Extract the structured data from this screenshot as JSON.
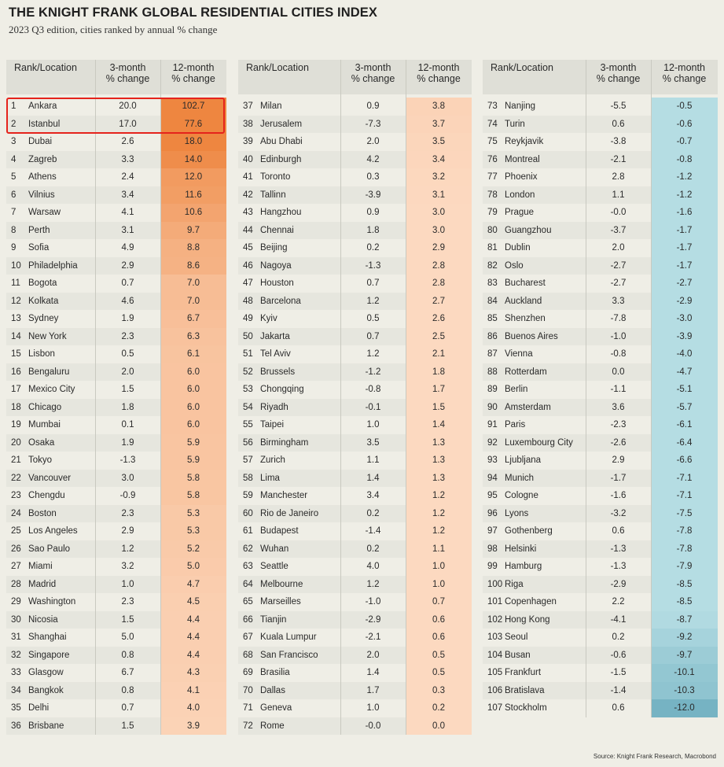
{
  "title": "THE KNIGHT FRANK GLOBAL RESIDENTIAL CITIES INDEX",
  "subtitle": "2023 Q3 edition, cities ranked by annual % change",
  "source": "Source: Knight Frank Research, Macrobond",
  "colors": {
    "background": "#efeee6",
    "header": "#dfdfd7",
    "positive_dark": "#ee8640",
    "positive_light": "#fcd9c0",
    "negative_light": "#b5dde3",
    "negative_dark": "#76b3c3",
    "highlight_border": "#e5231c"
  },
  "chart_data": {
    "type": "table",
    "columns": [
      "Rank/Location",
      "3-month % change",
      "12-month % change"
    ],
    "highlighted_ranks": [
      1,
      2
    ],
    "rows": [
      {
        "rank": "1",
        "city": "Ankara",
        "m3": "20.0",
        "m12": "102.7"
      },
      {
        "rank": "2",
        "city": "Istanbul",
        "m3": "17.0",
        "m12": "77.6"
      },
      {
        "rank": "3",
        "city": "Dubai",
        "m3": "2.6",
        "m12": "18.0"
      },
      {
        "rank": "4",
        "city": "Zagreb",
        "m3": "3.3",
        "m12": "14.0"
      },
      {
        "rank": "5",
        "city": "Athens",
        "m3": "2.4",
        "m12": "12.0"
      },
      {
        "rank": "6",
        "city": "Vilnius",
        "m3": "3.4",
        "m12": "11.6"
      },
      {
        "rank": "7",
        "city": "Warsaw",
        "m3": "4.1",
        "m12": "10.6"
      },
      {
        "rank": "8",
        "city": "Perth",
        "m3": "3.1",
        "m12": "9.7"
      },
      {
        "rank": "9",
        "city": "Sofia",
        "m3": "4.9",
        "m12": "8.8"
      },
      {
        "rank": "10",
        "city": "Philadelphia",
        "m3": "2.9",
        "m12": "8.6"
      },
      {
        "rank": "11",
        "city": "Bogota",
        "m3": "0.7",
        "m12": "7.0"
      },
      {
        "rank": "12",
        "city": "Kolkata",
        "m3": "4.6",
        "m12": "7.0"
      },
      {
        "rank": "13",
        "city": "Sydney",
        "m3": "1.9",
        "m12": "6.7"
      },
      {
        "rank": "14",
        "city": "New York",
        "m3": "2.3",
        "m12": "6.3"
      },
      {
        "rank": "15",
        "city": "Lisbon",
        "m3": "0.5",
        "m12": "6.1"
      },
      {
        "rank": "16",
        "city": "Bengaluru",
        "m3": "2.0",
        "m12": "6.0"
      },
      {
        "rank": "17",
        "city": "Mexico City",
        "m3": "1.5",
        "m12": "6.0"
      },
      {
        "rank": "18",
        "city": "Chicago",
        "m3": "1.8",
        "m12": "6.0"
      },
      {
        "rank": "19",
        "city": "Mumbai",
        "m3": "0.1",
        "m12": "6.0"
      },
      {
        "rank": "20",
        "city": "Osaka",
        "m3": "1.9",
        "m12": "5.9"
      },
      {
        "rank": "21",
        "city": "Tokyo",
        "m3": "-1.3",
        "m12": "5.9"
      },
      {
        "rank": "22",
        "city": "Vancouver",
        "m3": "3.0",
        "m12": "5.8"
      },
      {
        "rank": "23",
        "city": "Chengdu",
        "m3": "-0.9",
        "m12": "5.8"
      },
      {
        "rank": "24",
        "city": "Boston",
        "m3": "2.3",
        "m12": "5.3"
      },
      {
        "rank": "25",
        "city": "Los Angeles",
        "m3": "2.9",
        "m12": "5.3"
      },
      {
        "rank": "26",
        "city": "Sao Paulo",
        "m3": "1.2",
        "m12": "5.2"
      },
      {
        "rank": "27",
        "city": "Miami",
        "m3": "3.2",
        "m12": "5.0"
      },
      {
        "rank": "28",
        "city": "Madrid",
        "m3": "1.0",
        "m12": "4.7"
      },
      {
        "rank": "29",
        "city": "Washington",
        "m3": "2.3",
        "m12": "4.5"
      },
      {
        "rank": "30",
        "city": "Nicosia",
        "m3": "1.5",
        "m12": "4.4"
      },
      {
        "rank": "31",
        "city": "Shanghai",
        "m3": "5.0",
        "m12": "4.4"
      },
      {
        "rank": "32",
        "city": "Singapore",
        "m3": "0.8",
        "m12": "4.4"
      },
      {
        "rank": "33",
        "city": "Glasgow",
        "m3": "6.7",
        "m12": "4.3"
      },
      {
        "rank": "34",
        "city": "Bangkok",
        "m3": "0.8",
        "m12": "4.1"
      },
      {
        "rank": "35",
        "city": "Delhi",
        "m3": "0.7",
        "m12": "4.0"
      },
      {
        "rank": "36",
        "city": "Brisbane",
        "m3": "1.5",
        "m12": "3.9"
      },
      {
        "rank": "37",
        "city": "Milan",
        "m3": "0.9",
        "m12": "3.8"
      },
      {
        "rank": "38",
        "city": "Jerusalem",
        "m3": "-7.3",
        "m12": "3.7"
      },
      {
        "rank": "39",
        "city": "Abu Dhabi",
        "m3": "2.0",
        "m12": "3.5"
      },
      {
        "rank": "40",
        "city": "Edinburgh",
        "m3": "4.2",
        "m12": "3.4"
      },
      {
        "rank": "41",
        "city": "Toronto",
        "m3": "0.3",
        "m12": "3.2"
      },
      {
        "rank": "42",
        "city": "Tallinn",
        "m3": "-3.9",
        "m12": "3.1"
      },
      {
        "rank": "43",
        "city": "Hangzhou",
        "m3": "0.9",
        "m12": "3.0"
      },
      {
        "rank": "44",
        "city": "Chennai",
        "m3": "1.8",
        "m12": "3.0"
      },
      {
        "rank": "45",
        "city": "Beijing",
        "m3": "0.2",
        "m12": "2.9"
      },
      {
        "rank": "46",
        "city": "Nagoya",
        "m3": "-1.3",
        "m12": "2.8"
      },
      {
        "rank": "47",
        "city": "Houston",
        "m3": "0.7",
        "m12": "2.8"
      },
      {
        "rank": "48",
        "city": "Barcelona",
        "m3": "1.2",
        "m12": "2.7"
      },
      {
        "rank": "49",
        "city": "Kyiv",
        "m3": "0.5",
        "m12": "2.6"
      },
      {
        "rank": "50",
        "city": "Jakarta",
        "m3": "0.7",
        "m12": "2.5"
      },
      {
        "rank": "51",
        "city": "Tel Aviv",
        "m3": "1.2",
        "m12": "2.1"
      },
      {
        "rank": "52",
        "city": "Brussels",
        "m3": "-1.2",
        "m12": "1.8"
      },
      {
        "rank": "53",
        "city": "Chongqing",
        "m3": "-0.8",
        "m12": "1.7"
      },
      {
        "rank": "54",
        "city": "Riyadh",
        "m3": "-0.1",
        "m12": "1.5"
      },
      {
        "rank": "55",
        "city": "Taipei",
        "m3": "1.0",
        "m12": "1.4"
      },
      {
        "rank": "56",
        "city": "Birmingham",
        "m3": "3.5",
        "m12": "1.3"
      },
      {
        "rank": "57",
        "city": "Zurich",
        "m3": "1.1",
        "m12": "1.3"
      },
      {
        "rank": "58",
        "city": "Lima",
        "m3": "1.4",
        "m12": "1.3"
      },
      {
        "rank": "59",
        "city": "Manchester",
        "m3": "3.4",
        "m12": "1.2"
      },
      {
        "rank": "60",
        "city": "Rio de Janeiro",
        "m3": "0.2",
        "m12": "1.2"
      },
      {
        "rank": "61",
        "city": "Budapest",
        "m3": "-1.4",
        "m12": "1.2"
      },
      {
        "rank": "62",
        "city": "Wuhan",
        "m3": "0.2",
        "m12": "1.1"
      },
      {
        "rank": "63",
        "city": "Seattle",
        "m3": "4.0",
        "m12": "1.0"
      },
      {
        "rank": "64",
        "city": "Melbourne",
        "m3": "1.2",
        "m12": "1.0"
      },
      {
        "rank": "65",
        "city": "Marseilles",
        "m3": "-1.0",
        "m12": "0.7"
      },
      {
        "rank": "66",
        "city": "Tianjin",
        "m3": "-2.9",
        "m12": "0.6"
      },
      {
        "rank": "67",
        "city": "Kuala Lumpur",
        "m3": "-2.1",
        "m12": "0.6"
      },
      {
        "rank": "68",
        "city": "San Francisco",
        "m3": "2.0",
        "m12": "0.5"
      },
      {
        "rank": "69",
        "city": "Brasilia",
        "m3": "1.4",
        "m12": "0.5"
      },
      {
        "rank": "70",
        "city": "Dallas",
        "m3": "1.7",
        "m12": "0.3"
      },
      {
        "rank": "71",
        "city": "Geneva",
        "m3": "1.0",
        "m12": "0.2"
      },
      {
        "rank": "72",
        "city": "Rome",
        "m3": "-0.0",
        "m12": "0.0"
      },
      {
        "rank": "73",
        "city": "Nanjing",
        "m3": "-5.5",
        "m12": "-0.5"
      },
      {
        "rank": "74",
        "city": "Turin",
        "m3": "0.6",
        "m12": "-0.6"
      },
      {
        "rank": "75",
        "city": "Reykjavik",
        "m3": "-3.8",
        "m12": "-0.7"
      },
      {
        "rank": "76",
        "city": "Montreal",
        "m3": "-2.1",
        "m12": "-0.8"
      },
      {
        "rank": "77",
        "city": "Phoenix",
        "m3": "2.8",
        "m12": "-1.2"
      },
      {
        "rank": "78",
        "city": "London",
        "m3": "1.1",
        "m12": "-1.2"
      },
      {
        "rank": "79",
        "city": "Prague",
        "m3": "-0.0",
        "m12": "-1.6"
      },
      {
        "rank": "80",
        "city": "Guangzhou",
        "m3": "-3.7",
        "m12": "-1.7"
      },
      {
        "rank": "81",
        "city": "Dublin",
        "m3": "2.0",
        "m12": "-1.7"
      },
      {
        "rank": "82",
        "city": "Oslo",
        "m3": "-2.7",
        "m12": "-1.7"
      },
      {
        "rank": "83",
        "city": "Bucharest",
        "m3": "-2.7",
        "m12": "-2.7"
      },
      {
        "rank": "84",
        "city": "Auckland",
        "m3": "3.3",
        "m12": "-2.9"
      },
      {
        "rank": "85",
        "city": "Shenzhen",
        "m3": "-7.8",
        "m12": "-3.0"
      },
      {
        "rank": "86",
        "city": "Buenos Aires",
        "m3": "-1.0",
        "m12": "-3.9"
      },
      {
        "rank": "87",
        "city": "Vienna",
        "m3": "-0.8",
        "m12": "-4.0"
      },
      {
        "rank": "88",
        "city": "Rotterdam",
        "m3": "0.0",
        "m12": "-4.7"
      },
      {
        "rank": "89",
        "city": "Berlin",
        "m3": "-1.1",
        "m12": "-5.1"
      },
      {
        "rank": "90",
        "city": "Amsterdam",
        "m3": "3.6",
        "m12": "-5.7"
      },
      {
        "rank": "91",
        "city": "Paris",
        "m3": "-2.3",
        "m12": "-6.1"
      },
      {
        "rank": "92",
        "city": "Luxembourg City",
        "m3": "-2.6",
        "m12": "-6.4"
      },
      {
        "rank": "93",
        "city": "Ljubljana",
        "m3": "2.9",
        "m12": "-6.6"
      },
      {
        "rank": "94",
        "city": "Munich",
        "m3": "-1.7",
        "m12": "-7.1"
      },
      {
        "rank": "95",
        "city": "Cologne",
        "m3": "-1.6",
        "m12": "-7.1"
      },
      {
        "rank": "96",
        "city": "Lyons",
        "m3": "-3.2",
        "m12": "-7.5"
      },
      {
        "rank": "97",
        "city": "Gothenberg",
        "m3": "0.6",
        "m12": "-7.8"
      },
      {
        "rank": "98",
        "city": "Helsinki",
        "m3": "-1.3",
        "m12": "-7.8"
      },
      {
        "rank": "99",
        "city": "Hamburg",
        "m3": "-1.3",
        "m12": "-7.9"
      },
      {
        "rank": "100",
        "city": "Riga",
        "m3": "-2.9",
        "m12": "-8.5"
      },
      {
        "rank": "101",
        "city": "Copenhagen",
        "m3": "2.2",
        "m12": "-8.5"
      },
      {
        "rank": "102",
        "city": "Hong Kong",
        "m3": "-4.1",
        "m12": "-8.7"
      },
      {
        "rank": "103",
        "city": "Seoul",
        "m3": "0.2",
        "m12": "-9.2"
      },
      {
        "rank": "104",
        "city": "Busan",
        "m3": "-0.6",
        "m12": "-9.7"
      },
      {
        "rank": "105",
        "city": "Frankfurt",
        "m3": "-1.5",
        "m12": "-10.1"
      },
      {
        "rank": "106",
        "city": "Bratislava",
        "m3": "-1.4",
        "m12": "-10.3"
      },
      {
        "rank": "107",
        "city": "Stockholm",
        "m3": "0.6",
        "m12": "-12.0"
      }
    ]
  }
}
